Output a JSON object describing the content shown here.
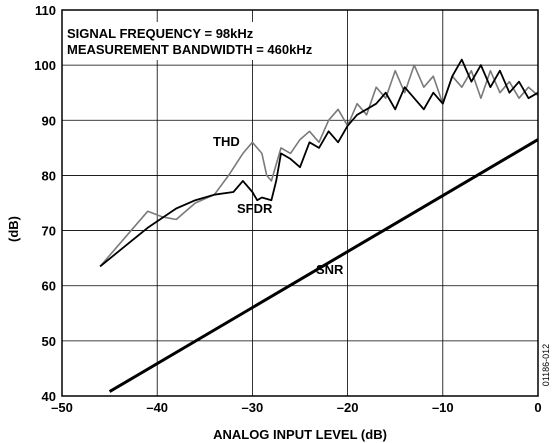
{
  "chart_data": {
    "type": "line",
    "xlabel": "ANALOG INPUT LEVEL (dB)",
    "ylabel": "(dB)",
    "xlim": [
      -50,
      0
    ],
    "ylim": [
      40,
      110
    ],
    "xticks": [
      "–50",
      "–40",
      "–30",
      "–20",
      "–10",
      "0"
    ],
    "yticks": [
      "40",
      "50",
      "60",
      "70",
      "80",
      "90",
      "100",
      "110"
    ],
    "grid": true,
    "annotations": [
      "SIGNAL FREQUENCY = 98kHz",
      "MEASUREMENT BANDWIDTH = 460kHz"
    ],
    "figure_code": "01186-012",
    "series": [
      {
        "name": "SNR",
        "color": "#000000",
        "x": [
          -45,
          0
        ],
        "y": [
          40.8,
          86.5
        ]
      },
      {
        "name": "THD",
        "color": "#7a7a7a",
        "x": [
          -46,
          -41,
          -39.5,
          -38,
          -36,
          -34,
          -32.5,
          -31,
          -30,
          -29,
          -28.5,
          -28,
          -27,
          -26,
          -25,
          -24,
          -23,
          -22,
          -21,
          -20,
          -19,
          -18,
          -17,
          -16,
          -15,
          -14,
          -13,
          -12,
          -11,
          -10,
          -9,
          -8,
          -7,
          -6,
          -5,
          -4,
          -3,
          -2,
          -1,
          0
        ],
        "y": [
          63.5,
          73.5,
          72.5,
          72,
          75,
          76.5,
          80,
          84,
          86,
          84,
          80,
          79,
          85,
          84,
          86.5,
          88,
          86,
          90,
          92,
          89,
          93,
          91,
          96,
          94,
          99,
          95,
          100,
          96,
          98,
          93,
          98,
          96,
          99,
          94,
          99,
          95,
          97,
          94,
          96,
          94.5
        ]
      },
      {
        "name": "SFDR",
        "color": "#000000",
        "x": [
          -46,
          -41,
          -38,
          -36,
          -34,
          -32,
          -31,
          -30,
          -29.5,
          -29,
          -28,
          -27.5,
          -27,
          -26,
          -25,
          -24,
          -23,
          -22,
          -21,
          -20,
          -19,
          -18,
          -17,
          -16,
          -15,
          -14,
          -13,
          -12,
          -11,
          -10,
          -9,
          -8,
          -7,
          -6,
          -5,
          -4,
          -3,
          -2,
          -1,
          0
        ],
        "y": [
          63.5,
          70.5,
          74,
          75.5,
          76.5,
          77,
          79,
          77,
          75.5,
          76,
          75.5,
          79,
          84,
          83,
          81.5,
          86,
          85,
          88,
          86,
          89,
          91,
          92,
          93,
          95,
          92,
          96,
          94,
          92,
          95,
          93,
          98,
          101,
          97,
          100,
          96,
          99,
          95,
          97,
          94,
          95
        ]
      }
    ]
  }
}
